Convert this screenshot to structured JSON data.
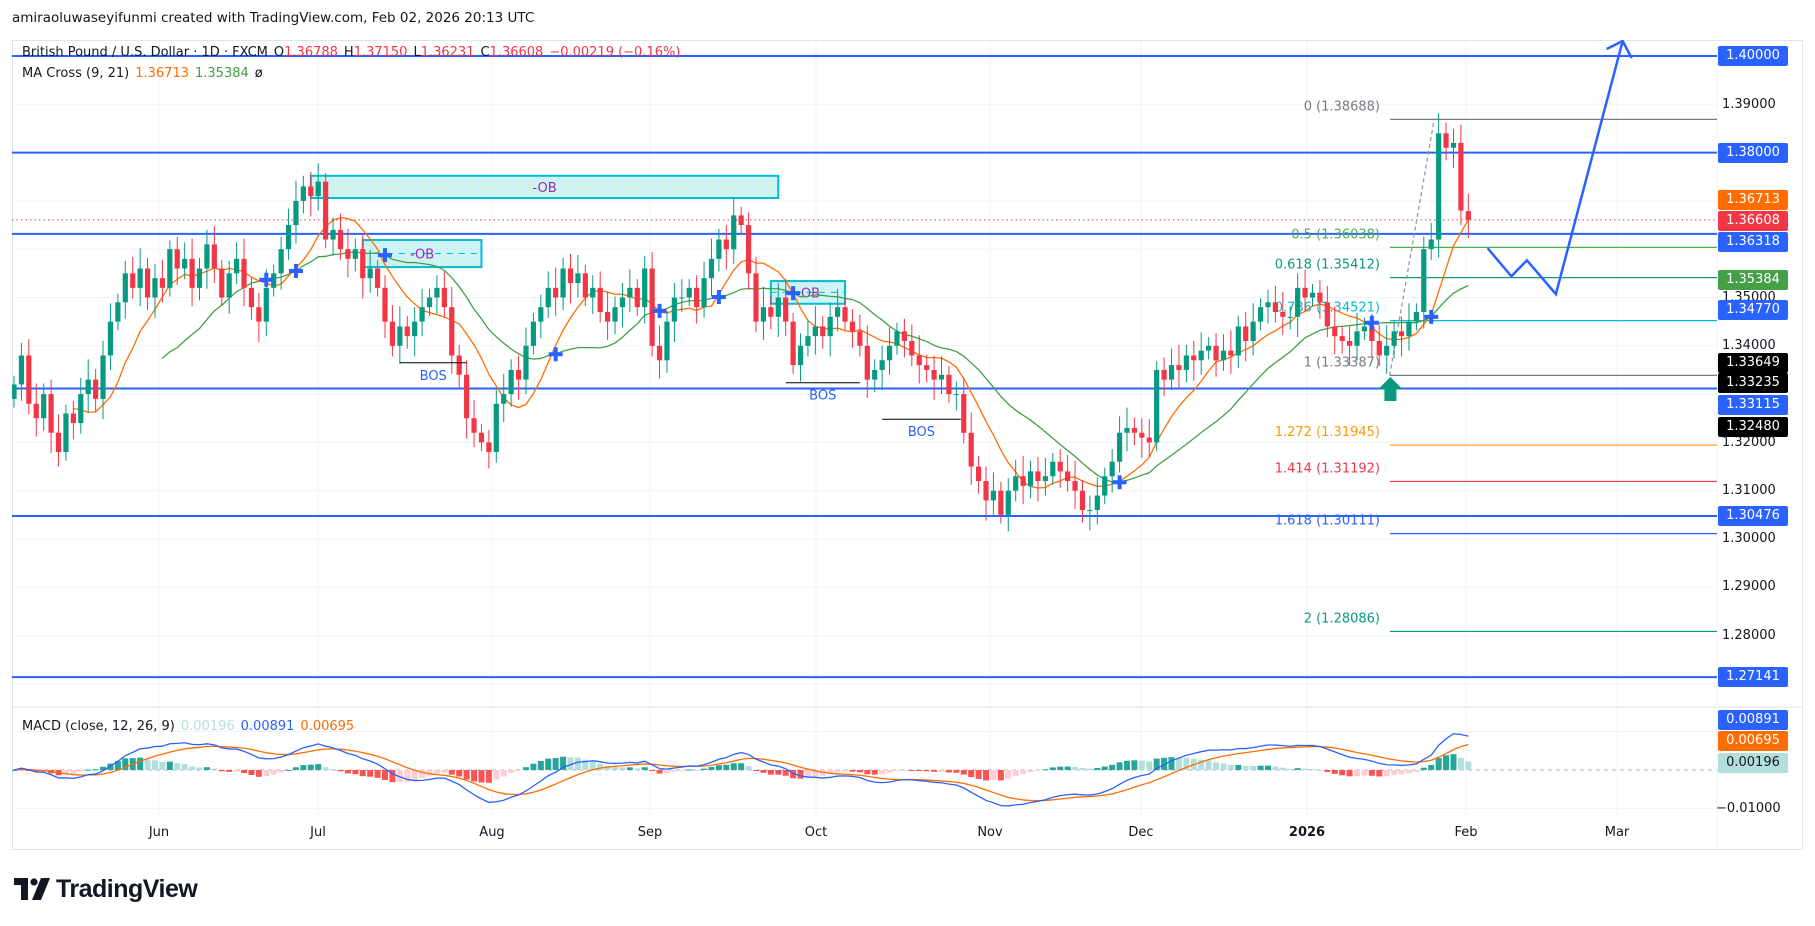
{
  "attribution": "amiraoluwaseyifunmi created with TradingView.com, Feb 02, 2026 20:13 UTC",
  "legend": {
    "symbol": "British Pound / U.S. Dollar · 1D · FXCM",
    "o_label": "O",
    "o": "1.36788",
    "h_label": "H",
    "h": "1.37150",
    "l_label": "L",
    "l": "1.36231",
    "c_label": "C",
    "c": "1.36608",
    "change": "−0.00219 (−0.16%)"
  },
  "ma_legend": {
    "name": "MA Cross (9, 21)",
    "fast": "1.36713",
    "slow": "1.35384",
    "symbol": "ø"
  },
  "macd_legend": {
    "name": "MACD (close, 12, 26, 9)",
    "histogram": "0.00196",
    "macd": "0.00891",
    "signal": "0.00695"
  },
  "price_ticks": [
    "1.39000",
    "1.35000",
    "1.34000",
    "1.32000",
    "1.31000",
    "1.30000",
    "1.29000",
    "1.28000"
  ],
  "macd_ticks": [
    "−0.01000"
  ],
  "badges": [
    {
      "value": "1.40000",
      "color": "#2962ff"
    },
    {
      "value": "1.38000",
      "color": "#2962ff"
    },
    {
      "value": "1.36713",
      "color": "#ff6d00"
    },
    {
      "value": "1.36608",
      "color": "#f23645"
    },
    {
      "value": "1.36318",
      "color": "#2962ff"
    },
    {
      "value": "1.35384",
      "color": "#43a047"
    },
    {
      "value": "1.34770",
      "color": "#2962ff"
    },
    {
      "value": "1.33649",
      "color": "#000000"
    },
    {
      "value": "1.33235",
      "color": "#000000"
    },
    {
      "value": "1.33115",
      "color": "#2962ff"
    },
    {
      "value": "1.32480",
      "color": "#000000"
    },
    {
      "value": "1.30476",
      "color": "#2962ff"
    },
    {
      "value": "1.27141",
      "color": "#2962ff"
    },
    {
      "value": "0.00891",
      "color": "#2962ff"
    },
    {
      "value": "0.00695",
      "color": "#ff6d00"
    },
    {
      "value": "0.00196",
      "color": "#b2dfdb"
    }
  ],
  "time_labels": [
    "Jun",
    "Jul",
    "Aug",
    "Sep",
    "Oct",
    "Nov",
    "Dec",
    "2026",
    "Feb",
    "Mar"
  ],
  "horizontal_levels": [
    1.4,
    1.38,
    1.36318,
    1.33115,
    1.30476,
    1.27141
  ],
  "fib_levels": [
    {
      "label": "0 (1.38688)",
      "price": 1.38688,
      "color": "#787b86"
    },
    {
      "label": "0.5 (1.36038)",
      "price": 1.36038,
      "color": "#4caf50"
    },
    {
      "label": "0.618 (1.35412)",
      "price": 1.35412,
      "color": "#089981"
    },
    {
      "label": "0.786 (1.34521)",
      "price": 1.34521,
      "color": "#00bcd4"
    },
    {
      "label": "1 (1.33387)",
      "price": 1.33387,
      "color": "#787b86"
    },
    {
      "label": "1.272 (1.31945)",
      "price": 1.31945,
      "color": "#ff9800"
    },
    {
      "label": "1.414 (1.31192)",
      "price": 1.31192,
      "color": "#f23645"
    },
    {
      "label": "1.618 (1.30111)",
      "price": 1.30111,
      "color": "#2962ff"
    },
    {
      "label": "2 (1.28086)",
      "price": 1.28086,
      "color": "#089981"
    }
  ],
  "order_blocks": [
    {
      "label": "-OB",
      "top": 1.3752,
      "bottom": 1.3706,
      "from_bar": 40,
      "to_bar": 103
    },
    {
      "label": "-OB",
      "top": 1.3619,
      "bottom": 1.3563,
      "from_bar": 47,
      "to_bar": 63
    },
    {
      "label": "-OB",
      "top": 1.3534,
      "bottom": 1.3487,
      "from_bar": 102,
      "to_bar": 112
    }
  ],
  "bos": [
    {
      "label": "BOS",
      "price": 1.33649,
      "from_bar": 52,
      "to_bar": 61
    },
    {
      "label": "BOS",
      "price": 1.33235,
      "from_bar": 104,
      "to_bar": 114
    },
    {
      "label": "BOS",
      "price": 1.3248,
      "from_bar": 117,
      "to_bar": 127.6
    }
  ],
  "projection": [
    [
      198.6,
      1.3602
    ],
    [
      201.8,
      1.3544
    ],
    [
      203.9,
      1.3577
    ],
    [
      207.8,
      1.3507
    ],
    [
      216.8,
      1.4031
    ]
  ],
  "colors": {
    "up": "#089981",
    "down": "#f23645",
    "ma_fast": "#ff6d00",
    "ma_slow": "#43a047",
    "macd": "#2962ff",
    "signal": "#ff6d00",
    "level": "#2962ff",
    "ob_fill": "#cdf3f5",
    "ob_border": "#00bcd4",
    "ob_text": "#9c27b0"
  },
  "chart_data": {
    "type": "candlestick",
    "ylim": [
      1.262,
      1.408
    ],
    "macd_ylim": [
      -0.0118,
      0.0165
    ],
    "ma_periods": [
      9,
      21
    ],
    "macd_params": [
      12,
      26,
      9
    ],
    "closes": [
      1.332,
      1.338,
      1.328,
      1.325,
      1.33,
      1.322,
      1.318,
      1.326,
      1.324,
      1.33,
      1.333,
      1.329,
      1.338,
      1.345,
      1.349,
      1.355,
      1.352,
      1.356,
      1.35,
      1.354,
      1.352,
      1.36,
      1.356,
      1.358,
      1.352,
      1.356,
      1.361,
      1.356,
      1.35,
      1.355,
      1.358,
      1.352,
      1.348,
      1.345,
      1.352,
      1.355,
      1.36,
      1.365,
      1.37,
      1.373,
      1.371,
      1.374,
      1.362,
      1.364,
      1.36,
      1.358,
      1.36,
      1.354,
      1.356,
      1.352,
      1.345,
      1.34,
      1.344,
      1.342,
      1.345,
      1.348,
      1.35,
      1.352,
      1.348,
      1.338,
      1.334,
      1.325,
      1.322,
      1.32,
      1.318,
      1.328,
      1.33,
      1.335,
      1.333,
      1.34,
      1.345,
      1.348,
      1.352,
      1.35,
      1.356,
      1.353,
      1.355,
      1.35,
      1.352,
      1.347,
      1.345,
      1.348,
      1.35,
      1.352,
      1.348,
      1.356,
      1.34,
      1.337,
      1.345,
      1.35,
      1.35,
      1.352,
      1.348,
      1.354,
      1.358,
      1.362,
      1.36,
      1.367,
      1.365,
      1.355,
      1.345,
      1.348,
      1.346,
      1.35,
      1.345,
      1.336,
      1.34,
      1.342,
      1.344,
      1.342,
      1.346,
      1.348,
      1.345,
      1.343,
      1.34,
      1.333,
      1.335,
      1.337,
      1.34,
      1.343,
      1.341,
      1.338,
      1.336,
      1.335,
      1.333,
      1.334,
      1.33,
      1.33,
      1.322,
      1.315,
      1.312,
      1.308,
      1.31,
      1.305,
      1.31,
      1.313,
      1.311,
      1.314,
      1.312,
      1.313,
      1.316,
      1.314,
      1.312,
      1.31,
      1.306,
      1.306,
      1.309,
      1.313,
      1.316,
      1.322,
      1.323,
      1.322,
      1.321,
      1.32,
      1.335,
      1.333,
      1.336,
      1.335,
      1.338,
      1.337,
      1.339,
      1.34,
      1.337,
      1.339,
      1.338,
      1.344,
      1.341,
      1.345,
      1.348,
      1.349,
      1.347,
      1.346,
      1.346,
      1.352,
      1.35,
      1.351,
      1.349,
      1.344,
      1.342,
      1.341,
      1.34,
      1.343,
      1.344,
      1.341,
      1.338,
      1.34,
      1.343,
      1.342,
      1.345,
      1.347,
      1.36,
      1.362,
      1.384,
      1.381,
      1.382,
      1.368,
      1.36608
    ],
    "last_bar": {
      "open": 1.36788,
      "high": 1.3715,
      "low": 1.36231,
      "close": 1.36608
    }
  }
}
